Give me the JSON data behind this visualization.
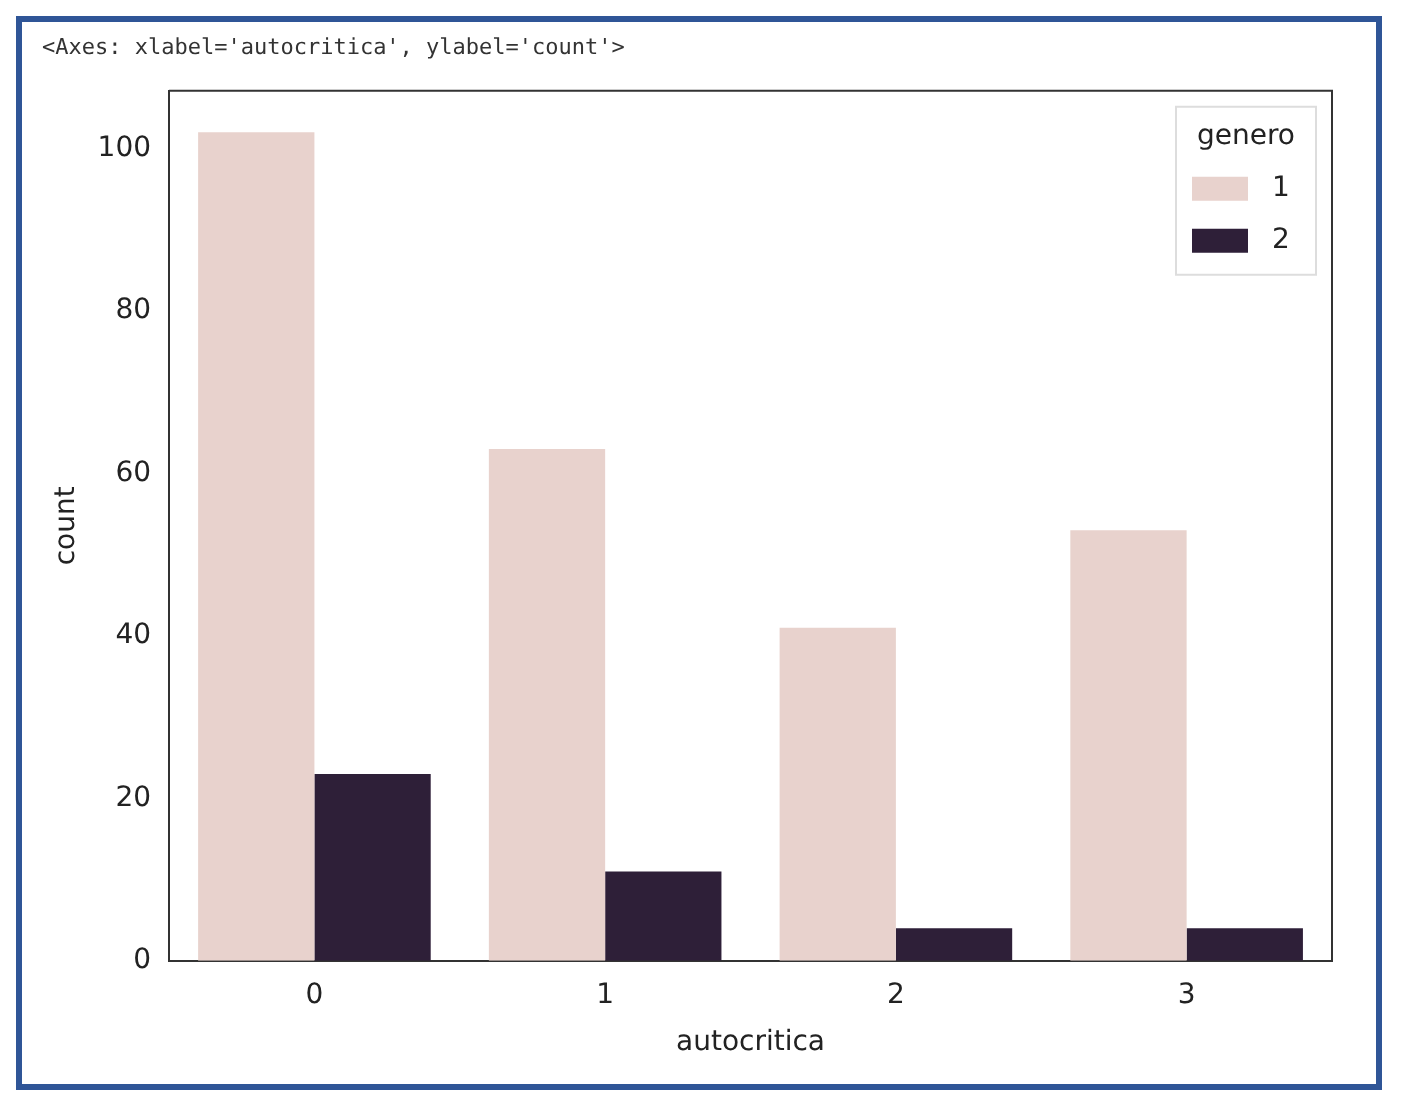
{
  "chart_data": {
    "type": "bar",
    "annotations": [
      "<Axes: xlabel='autocritica', ylabel='count'>"
    ],
    "xlabel": "autocritica",
    "ylabel": "count",
    "legend_title": "genero",
    "categories": [
      "0",
      "1",
      "2",
      "3"
    ],
    "series": [
      {
        "name": "1",
        "color": "#e8d2cd",
        "values": [
          102,
          63,
          41,
          53
        ]
      },
      {
        "name": "2",
        "color": "#2e1f38",
        "values": [
          23,
          11,
          4,
          4
        ]
      }
    ],
    "ylim": [
      0,
      107.1
    ],
    "yticks": [
      0,
      20,
      40,
      60,
      80,
      100
    ],
    "grid": false,
    "legend": "top right"
  }
}
